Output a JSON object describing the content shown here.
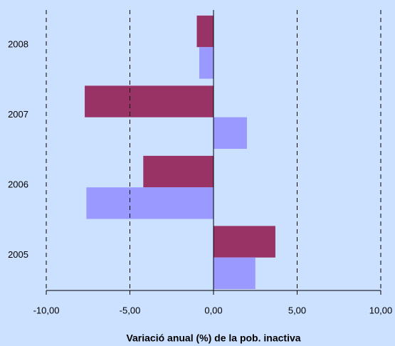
{
  "chart_data": {
    "type": "hbar",
    "xlabel": "Variació anual (%) de la pob. inactiva",
    "categories": [
      "2005",
      "2006",
      "2007",
      "2008"
    ],
    "series": [
      {
        "color": "#993366",
        "values": [
          3.7,
          -4.2,
          -7.7,
          -1.0
        ]
      },
      {
        "color": "#9999ff",
        "values": [
          2.5,
          -7.6,
          2.0,
          -0.85
        ]
      }
    ],
    "xlim": [
      -10,
      10
    ],
    "xticks": [
      {
        "value": -10,
        "label": "-10,00"
      },
      {
        "value": -5,
        "label": "-5,00"
      },
      {
        "value": 0,
        "label": "0,00"
      },
      {
        "value": 5,
        "label": "5,00"
      },
      {
        "value": 10,
        "label": "10,00"
      }
    ],
    "grid": true
  }
}
